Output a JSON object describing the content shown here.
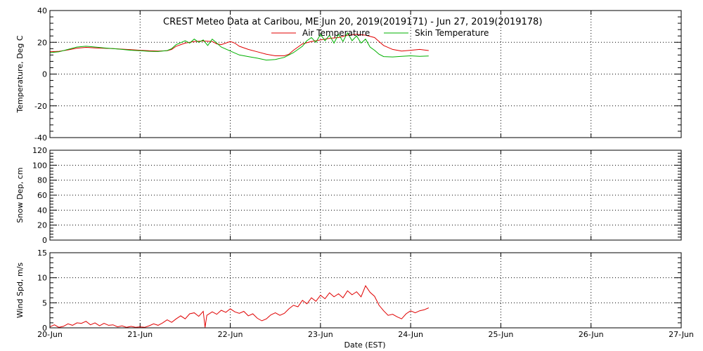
{
  "chart_data": {
    "type": "line",
    "title": "CREST Meteo Data at Caribou, ME   Jun 20, 2019(2019171) - Jun 27, 2019(2019178)",
    "xlabel": "Date (EST)",
    "x_ticks": [
      "20-Jun",
      "21-Jun",
      "22-Jun",
      "23-Jun",
      "24-Jun",
      "25-Jun",
      "26-Jun",
      "27-Jun"
    ],
    "xlim": [
      0,
      7
    ],
    "colors": {
      "air": "#e00000",
      "skin": "#00b000",
      "wind": "#e00000"
    },
    "panels": [
      {
        "id": "temperature",
        "ylabel": "Temperature, Deg C",
        "ylim": [
          -40,
          40
        ],
        "yticks": [
          -40,
          -20,
          0,
          20,
          40
        ],
        "legend_position": "top-right",
        "series": [
          {
            "name": "Air Temperature",
            "color": "#e00000",
            "points": [
              [
                0,
                14
              ],
              [
                0.1,
                14.3
              ],
              [
                0.2,
                15.2
              ],
              [
                0.3,
                16.3
              ],
              [
                0.4,
                16.8
              ],
              [
                0.5,
                16.5
              ],
              [
                0.6,
                16.2
              ],
              [
                0.7,
                16
              ],
              [
                0.8,
                15.7
              ],
              [
                0.9,
                15.4
              ],
              [
                1.0,
                15
              ],
              [
                1.1,
                14.7
              ],
              [
                1.2,
                14.5
              ],
              [
                1.3,
                14.7
              ],
              [
                1.35,
                15.5
              ],
              [
                1.4,
                17.5
              ],
              [
                1.5,
                19.5
              ],
              [
                1.6,
                20.5
              ],
              [
                1.7,
                20.8
              ],
              [
                1.8,
                20.5
              ],
              [
                1.85,
                19
              ],
              [
                1.9,
                18.5
              ],
              [
                2.0,
                20.5
              ],
              [
                2.05,
                19.5
              ],
              [
                2.1,
                17.5
              ],
              [
                2.2,
                15.5
              ],
              [
                2.3,
                14
              ],
              [
                2.4,
                12.5
              ],
              [
                2.5,
                11.5
              ],
              [
                2.6,
                11.5
              ],
              [
                2.65,
                12.5
              ],
              [
                2.7,
                15
              ],
              [
                2.8,
                19
              ],
              [
                2.9,
                20.5
              ],
              [
                3.0,
                21.5
              ],
              [
                3.1,
                22.5
              ],
              [
                3.2,
                23
              ],
              [
                3.3,
                24.5
              ],
              [
                3.4,
                25
              ],
              [
                3.5,
                24.5
              ],
              [
                3.6,
                23
              ],
              [
                3.65,
                20.5
              ],
              [
                3.7,
                18
              ],
              [
                3.8,
                15.5
              ],
              [
                3.9,
                14.5
              ],
              [
                4.0,
                15
              ],
              [
                4.1,
                15.5
              ],
              [
                4.2,
                14.8
              ]
            ]
          },
          {
            "name": "Skin Temperature",
            "color": "#00b000",
            "points": [
              [
                0,
                13.5
              ],
              [
                0.1,
                14
              ],
              [
                0.2,
                15.5
              ],
              [
                0.3,
                17
              ],
              [
                0.4,
                17.5
              ],
              [
                0.5,
                17
              ],
              [
                0.6,
                16.5
              ],
              [
                0.7,
                16
              ],
              [
                0.8,
                15.5
              ],
              [
                0.9,
                15
              ],
              [
                1.0,
                14.7
              ],
              [
                1.1,
                14.3
              ],
              [
                1.2,
                14.2
              ],
              [
                1.3,
                14.8
              ],
              [
                1.35,
                16
              ],
              [
                1.4,
                18.5
              ],
              [
                1.5,
                21
              ],
              [
                1.55,
                19.5
              ],
              [
                1.6,
                22
              ],
              [
                1.65,
                20
              ],
              [
                1.7,
                21.5
              ],
              [
                1.75,
                18
              ],
              [
                1.8,
                22
              ],
              [
                1.85,
                19.5
              ],
              [
                1.9,
                17
              ],
              [
                2.0,
                14.5
              ],
              [
                2.1,
                12
              ],
              [
                2.2,
                11
              ],
              [
                2.3,
                10
              ],
              [
                2.4,
                8.8
              ],
              [
                2.5,
                9.2
              ],
              [
                2.6,
                10.5
              ],
              [
                2.7,
                13.5
              ],
              [
                2.8,
                17.5
              ],
              [
                2.85,
                21
              ],
              [
                2.9,
                23
              ],
              [
                2.95,
                20
              ],
              [
                3.0,
                25
              ],
              [
                3.05,
                21
              ],
              [
                3.1,
                24.5
              ],
              [
                3.15,
                19.5
              ],
              [
                3.2,
                25
              ],
              [
                3.25,
                20.5
              ],
              [
                3.3,
                26
              ],
              [
                3.35,
                21
              ],
              [
                3.4,
                24
              ],
              [
                3.45,
                19.5
              ],
              [
                3.5,
                22
              ],
              [
                3.55,
                17
              ],
              [
                3.6,
                15
              ],
              [
                3.65,
                12.5
              ],
              [
                3.7,
                11
              ],
              [
                3.8,
                10.8
              ],
              [
                3.9,
                11.2
              ],
              [
                4.0,
                11.5
              ],
              [
                4.1,
                11.2
              ],
              [
                4.2,
                11.4
              ]
            ]
          }
        ]
      },
      {
        "id": "snow",
        "ylabel": "Snow Dep, cm",
        "ylim": [
          0,
          120
        ],
        "yticks": [
          0,
          20,
          40,
          60,
          80,
          100,
          120
        ],
        "series": []
      },
      {
        "id": "wind",
        "ylabel": "Wind Spd, m/s",
        "ylim": [
          0,
          15
        ],
        "yticks": [
          0,
          5,
          10,
          15
        ],
        "series": [
          {
            "name": "Wind Speed",
            "color": "#e00000",
            "points": [
              [
                0,
                0.2
              ],
              [
                0.05,
                0.6
              ],
              [
                0.1,
                0.1
              ],
              [
                0.15,
                0.3
              ],
              [
                0.2,
                0.8
              ],
              [
                0.25,
                0.5
              ],
              [
                0.3,
                1.0
              ],
              [
                0.35,
                0.9
              ],
              [
                0.4,
                1.3
              ],
              [
                0.45,
                0.6
              ],
              [
                0.5,
                1.0
              ],
              [
                0.55,
                0.4
              ],
              [
                0.6,
                0.9
              ],
              [
                0.65,
                0.5
              ],
              [
                0.7,
                0.6
              ],
              [
                0.75,
                0.2
              ],
              [
                0.8,
                0.4
              ],
              [
                0.85,
                0.1
              ],
              [
                0.9,
                0.3
              ],
              [
                0.95,
                0.1
              ],
              [
                1.0,
                0.2
              ],
              [
                1.05,
                0.1
              ],
              [
                1.1,
                0.4
              ],
              [
                1.15,
                0.8
              ],
              [
                1.2,
                0.5
              ],
              [
                1.25,
                1.0
              ],
              [
                1.3,
                1.6
              ],
              [
                1.35,
                1.1
              ],
              [
                1.4,
                1.8
              ],
              [
                1.45,
                2.4
              ],
              [
                1.5,
                1.8
              ],
              [
                1.55,
                2.8
              ],
              [
                1.6,
                3.0
              ],
              [
                1.65,
                2.3
              ],
              [
                1.7,
                3.3
              ],
              [
                1.72,
                0.1
              ],
              [
                1.74,
                2.5
              ],
              [
                1.8,
                3.2
              ],
              [
                1.85,
                2.7
              ],
              [
                1.9,
                3.5
              ],
              [
                1.95,
                3.1
              ],
              [
                2.0,
                3.8
              ],
              [
                2.05,
                3.2
              ],
              [
                2.1,
                2.9
              ],
              [
                2.15,
                3.3
              ],
              [
                2.2,
                2.4
              ],
              [
                2.25,
                2.8
              ],
              [
                2.3,
                1.9
              ],
              [
                2.35,
                1.4
              ],
              [
                2.4,
                1.8
              ],
              [
                2.45,
                2.6
              ],
              [
                2.5,
                3.0
              ],
              [
                2.55,
                2.5
              ],
              [
                2.6,
                2.9
              ],
              [
                2.65,
                3.8
              ],
              [
                2.7,
                4.5
              ],
              [
                2.75,
                4.2
              ],
              [
                2.8,
                5.5
              ],
              [
                2.85,
                4.8
              ],
              [
                2.9,
                6.0
              ],
              [
                2.95,
                5.3
              ],
              [
                3.0,
                6.5
              ],
              [
                3.05,
                5.8
              ],
              [
                3.1,
                7.0
              ],
              [
                3.15,
                6.2
              ],
              [
                3.2,
                6.8
              ],
              [
                3.25,
                6.0
              ],
              [
                3.3,
                7.4
              ],
              [
                3.35,
                6.6
              ],
              [
                3.4,
                7.2
              ],
              [
                3.45,
                6.2
              ],
              [
                3.5,
                8.4
              ],
              [
                3.55,
                7.1
              ],
              [
                3.6,
                6.3
              ],
              [
                3.65,
                4.5
              ],
              [
                3.7,
                3.4
              ],
              [
                3.75,
                2.5
              ],
              [
                3.8,
                2.7
              ],
              [
                3.85,
                2.2
              ],
              [
                3.9,
                1.8
              ],
              [
                3.95,
                2.8
              ],
              [
                4.0,
                3.4
              ],
              [
                4.05,
                3.0
              ],
              [
                4.1,
                3.4
              ],
              [
                4.15,
                3.6
              ],
              [
                4.2,
                4.0
              ]
            ]
          }
        ]
      }
    ]
  }
}
